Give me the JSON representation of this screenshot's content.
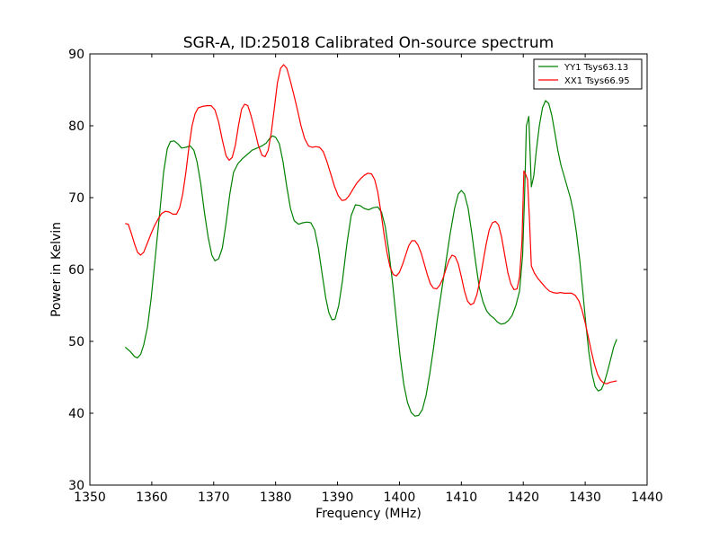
{
  "chart_data": {
    "type": "line",
    "title": "SGR-A, ID:25018 Calibrated On-source spectrum",
    "xlabel": "Frequency (MHz)",
    "ylabel": "Power in Kelvin",
    "xlim": [
      1350,
      1440
    ],
    "ylim": [
      30,
      90
    ],
    "xticks": [
      1350,
      1360,
      1370,
      1380,
      1390,
      1400,
      1410,
      1420,
      1430,
      1440
    ],
    "yticks": [
      30,
      40,
      50,
      60,
      70,
      80,
      90
    ],
    "grid": false,
    "legend": "top-right",
    "series": [
      {
        "name": "YY1 Tsys63.13",
        "color": "#008000",
        "points": [
          [
            1355.7,
            49.2
          ],
          [
            1356.5,
            48.6
          ],
          [
            1357.2,
            47.9
          ],
          [
            1357.7,
            47.7
          ],
          [
            1358.2,
            48.2
          ],
          [
            1358.7,
            49.5
          ],
          [
            1359.3,
            52.0
          ],
          [
            1359.9,
            56.0
          ],
          [
            1360.6,
            62.0
          ],
          [
            1361.3,
            68.0
          ],
          [
            1361.9,
            73.5
          ],
          [
            1362.5,
            76.8
          ],
          [
            1363.0,
            77.8
          ],
          [
            1363.6,
            77.9
          ],
          [
            1364.2,
            77.5
          ],
          [
            1364.8,
            76.9
          ],
          [
            1365.5,
            77.0
          ],
          [
            1366.2,
            77.2
          ],
          [
            1366.8,
            76.6
          ],
          [
            1367.3,
            75.0
          ],
          [
            1367.9,
            72.0
          ],
          [
            1368.5,
            68.0
          ],
          [
            1369.1,
            64.5
          ],
          [
            1369.7,
            62.0
          ],
          [
            1370.2,
            61.2
          ],
          [
            1370.8,
            61.5
          ],
          [
            1371.4,
            63.0
          ],
          [
            1372.0,
            66.5
          ],
          [
            1372.6,
            70.5
          ],
          [
            1373.2,
            73.5
          ],
          [
            1373.9,
            74.7
          ],
          [
            1374.6,
            75.4
          ],
          [
            1375.4,
            76.0
          ],
          [
            1376.2,
            76.6
          ],
          [
            1377.0,
            76.9
          ],
          [
            1377.8,
            77.2
          ],
          [
            1378.5,
            77.6
          ],
          [
            1379.0,
            78.2
          ],
          [
            1379.5,
            78.6
          ],
          [
            1380.0,
            78.4
          ],
          [
            1380.6,
            77.5
          ],
          [
            1381.2,
            75.0
          ],
          [
            1381.8,
            71.5
          ],
          [
            1382.4,
            68.5
          ],
          [
            1383.0,
            66.8
          ],
          [
            1383.7,
            66.3
          ],
          [
            1384.4,
            66.5
          ],
          [
            1385.1,
            66.6
          ],
          [
            1385.7,
            66.5
          ],
          [
            1386.3,
            65.5
          ],
          [
            1386.9,
            63.0
          ],
          [
            1387.5,
            59.5
          ],
          [
            1388.1,
            56.0
          ],
          [
            1388.6,
            54.0
          ],
          [
            1389.1,
            53.0
          ],
          [
            1389.6,
            53.1
          ],
          [
            1390.2,
            55.0
          ],
          [
            1390.8,
            58.5
          ],
          [
            1391.5,
            63.5
          ],
          [
            1392.2,
            67.5
          ],
          [
            1392.9,
            69.0
          ],
          [
            1393.6,
            68.9
          ],
          [
            1394.3,
            68.5
          ],
          [
            1395.0,
            68.3
          ],
          [
            1395.8,
            68.6
          ],
          [
            1396.5,
            68.7
          ],
          [
            1397.1,
            68.0
          ],
          [
            1397.7,
            66.0
          ],
          [
            1398.3,
            62.5
          ],
          [
            1398.9,
            58.0
          ],
          [
            1399.5,
            53.0
          ],
          [
            1400.1,
            48.0
          ],
          [
            1400.7,
            44.0
          ],
          [
            1401.3,
            41.5
          ],
          [
            1401.9,
            40.1
          ],
          [
            1402.5,
            39.6
          ],
          [
            1403.1,
            39.7
          ],
          [
            1403.7,
            40.5
          ],
          [
            1404.3,
            42.5
          ],
          [
            1404.9,
            45.5
          ],
          [
            1405.5,
            49.0
          ],
          [
            1406.1,
            53.0
          ],
          [
            1406.8,
            57.0
          ],
          [
            1407.5,
            61.0
          ],
          [
            1408.2,
            65.0
          ],
          [
            1408.9,
            68.5
          ],
          [
            1409.5,
            70.5
          ],
          [
            1410.0,
            71.0
          ],
          [
            1410.5,
            70.5
          ],
          [
            1411.1,
            68.5
          ],
          [
            1411.7,
            65.0
          ],
          [
            1412.3,
            61.0
          ],
          [
            1412.9,
            57.5
          ],
          [
            1413.5,
            55.5
          ],
          [
            1414.1,
            54.2
          ],
          [
            1414.7,
            53.6
          ],
          [
            1415.3,
            53.2
          ],
          [
            1415.8,
            52.7
          ],
          [
            1416.4,
            52.4
          ],
          [
            1417.0,
            52.5
          ],
          [
            1417.6,
            52.9
          ],
          [
            1418.2,
            53.6
          ],
          [
            1418.8,
            55.0
          ],
          [
            1419.4,
            57.0
          ],
          [
            1419.9,
            62.0
          ],
          [
            1420.2,
            70.0
          ],
          [
            1420.5,
            80.0
          ],
          [
            1420.9,
            81.3
          ],
          [
            1421.3,
            71.5
          ],
          [
            1421.7,
            73.0
          ],
          [
            1422.1,
            76.5
          ],
          [
            1422.6,
            80.0
          ],
          [
            1423.1,
            82.5
          ],
          [
            1423.6,
            83.5
          ],
          [
            1424.1,
            83.1
          ],
          [
            1424.6,
            81.5
          ],
          [
            1425.1,
            79.0
          ],
          [
            1425.6,
            76.5
          ],
          [
            1426.1,
            74.5
          ],
          [
            1426.6,
            73.0
          ],
          [
            1427.1,
            71.5
          ],
          [
            1427.6,
            70.0
          ],
          [
            1428.1,
            68.0
          ],
          [
            1428.6,
            65.0
          ],
          [
            1429.1,
            61.5
          ],
          [
            1429.6,
            57.0
          ],
          [
            1430.1,
            52.5
          ],
          [
            1430.6,
            48.5
          ],
          [
            1431.1,
            45.5
          ],
          [
            1431.6,
            43.7
          ],
          [
            1432.1,
            43.1
          ],
          [
            1432.6,
            43.3
          ],
          [
            1433.1,
            44.3
          ],
          [
            1433.6,
            45.8
          ],
          [
            1434.1,
            47.5
          ],
          [
            1434.6,
            49.2
          ],
          [
            1435.1,
            50.3
          ]
        ]
      },
      {
        "name": "XX1 Tsys66.95",
        "color": "#ff0000",
        "points": [
          [
            1355.7,
            66.4
          ],
          [
            1356.2,
            66.3
          ],
          [
            1356.7,
            65.0
          ],
          [
            1357.2,
            63.6
          ],
          [
            1357.7,
            62.4
          ],
          [
            1358.2,
            62.0
          ],
          [
            1358.7,
            62.4
          ],
          [
            1359.2,
            63.5
          ],
          [
            1359.8,
            64.8
          ],
          [
            1360.4,
            66.0
          ],
          [
            1361.0,
            67.0
          ],
          [
            1361.6,
            67.8
          ],
          [
            1362.2,
            68.1
          ],
          [
            1362.8,
            68.0
          ],
          [
            1363.4,
            67.7
          ],
          [
            1364.0,
            67.7
          ],
          [
            1364.5,
            68.6
          ],
          [
            1365.0,
            70.5
          ],
          [
            1365.5,
            73.5
          ],
          [
            1366.0,
            77.0
          ],
          [
            1366.5,
            80.0
          ],
          [
            1367.0,
            81.7
          ],
          [
            1367.5,
            82.5
          ],
          [
            1368.2,
            82.7
          ],
          [
            1368.9,
            82.8
          ],
          [
            1369.6,
            82.8
          ],
          [
            1370.2,
            82.2
          ],
          [
            1370.8,
            80.5
          ],
          [
            1371.4,
            78.0
          ],
          [
            1372.0,
            75.8
          ],
          [
            1372.5,
            75.2
          ],
          [
            1373.0,
            75.6
          ],
          [
            1373.5,
            77.3
          ],
          [
            1374.0,
            80.0
          ],
          [
            1374.5,
            82.3
          ],
          [
            1375.0,
            83.0
          ],
          [
            1375.5,
            82.8
          ],
          [
            1376.0,
            81.5
          ],
          [
            1376.6,
            79.5
          ],
          [
            1377.2,
            77.3
          ],
          [
            1377.8,
            75.9
          ],
          [
            1378.3,
            75.7
          ],
          [
            1378.8,
            76.6
          ],
          [
            1379.3,
            79.0
          ],
          [
            1379.8,
            82.5
          ],
          [
            1380.3,
            86.0
          ],
          [
            1380.8,
            88.0
          ],
          [
            1381.3,
            88.5
          ],
          [
            1381.8,
            88.0
          ],
          [
            1382.3,
            86.5
          ],
          [
            1382.9,
            84.5
          ],
          [
            1383.5,
            82.3
          ],
          [
            1384.1,
            80.0
          ],
          [
            1384.7,
            78.2
          ],
          [
            1385.3,
            77.2
          ],
          [
            1385.9,
            77.0
          ],
          [
            1386.5,
            77.1
          ],
          [
            1387.1,
            77.0
          ],
          [
            1387.7,
            76.4
          ],
          [
            1388.3,
            75.0
          ],
          [
            1388.9,
            73.3
          ],
          [
            1389.5,
            71.6
          ],
          [
            1390.1,
            70.3
          ],
          [
            1390.7,
            69.6
          ],
          [
            1391.3,
            69.7
          ],
          [
            1391.9,
            70.3
          ],
          [
            1392.5,
            71.2
          ],
          [
            1393.1,
            72.0
          ],
          [
            1393.7,
            72.6
          ],
          [
            1394.3,
            73.1
          ],
          [
            1394.9,
            73.4
          ],
          [
            1395.5,
            73.3
          ],
          [
            1396.0,
            72.5
          ],
          [
            1396.5,
            70.8
          ],
          [
            1397.0,
            68.0
          ],
          [
            1397.5,
            65.0
          ],
          [
            1398.0,
            62.3
          ],
          [
            1398.5,
            60.3
          ],
          [
            1399.0,
            59.3
          ],
          [
            1399.5,
            59.1
          ],
          [
            1400.0,
            59.6
          ],
          [
            1400.5,
            60.7
          ],
          [
            1401.0,
            62.0
          ],
          [
            1401.5,
            63.3
          ],
          [
            1402.0,
            64.0
          ],
          [
            1402.5,
            64.0
          ],
          [
            1403.0,
            63.4
          ],
          [
            1403.5,
            62.3
          ],
          [
            1404.0,
            60.8
          ],
          [
            1404.5,
            59.3
          ],
          [
            1405.0,
            58.0
          ],
          [
            1405.5,
            57.4
          ],
          [
            1406.0,
            57.3
          ],
          [
            1406.5,
            57.8
          ],
          [
            1407.0,
            58.7
          ],
          [
            1407.5,
            60.0
          ],
          [
            1408.0,
            61.3
          ],
          [
            1408.5,
            62.0
          ],
          [
            1409.0,
            61.8
          ],
          [
            1409.5,
            60.8
          ],
          [
            1410.0,
            59.0
          ],
          [
            1410.5,
            57.0
          ],
          [
            1411.0,
            55.6
          ],
          [
            1411.5,
            55.1
          ],
          [
            1412.0,
            55.3
          ],
          [
            1412.5,
            56.5
          ],
          [
            1413.0,
            58.5
          ],
          [
            1413.5,
            61.0
          ],
          [
            1414.0,
            63.5
          ],
          [
            1414.5,
            65.5
          ],
          [
            1415.0,
            66.5
          ],
          [
            1415.5,
            66.7
          ],
          [
            1416.0,
            66.2
          ],
          [
            1416.5,
            64.5
          ],
          [
            1417.0,
            62.0
          ],
          [
            1417.5,
            59.6
          ],
          [
            1418.0,
            58.0
          ],
          [
            1418.5,
            57.2
          ],
          [
            1419.0,
            57.3
          ],
          [
            1419.4,
            59.0
          ],
          [
            1419.8,
            64.0
          ],
          [
            1420.1,
            73.7
          ],
          [
            1420.4,
            73.2
          ],
          [
            1420.7,
            72.5
          ],
          [
            1421.0,
            67.0
          ],
          [
            1421.3,
            60.5
          ],
          [
            1421.8,
            59.5
          ],
          [
            1422.4,
            58.7
          ],
          [
            1423.0,
            58.1
          ],
          [
            1423.6,
            57.5
          ],
          [
            1424.2,
            57.0
          ],
          [
            1424.8,
            56.8
          ],
          [
            1425.4,
            56.7
          ],
          [
            1426.0,
            56.8
          ],
          [
            1426.6,
            56.7
          ],
          [
            1427.2,
            56.7
          ],
          [
            1427.8,
            56.7
          ],
          [
            1428.4,
            56.4
          ],
          [
            1429.0,
            55.6
          ],
          [
            1429.5,
            54.3
          ],
          [
            1430.0,
            52.6
          ],
          [
            1430.5,
            50.6
          ],
          [
            1431.0,
            48.6
          ],
          [
            1431.5,
            46.8
          ],
          [
            1432.0,
            45.4
          ],
          [
            1432.5,
            44.6
          ],
          [
            1433.0,
            44.2
          ],
          [
            1433.5,
            44.1
          ],
          [
            1434.0,
            44.3
          ],
          [
            1434.5,
            44.4
          ],
          [
            1435.1,
            44.5
          ]
        ]
      }
    ]
  }
}
